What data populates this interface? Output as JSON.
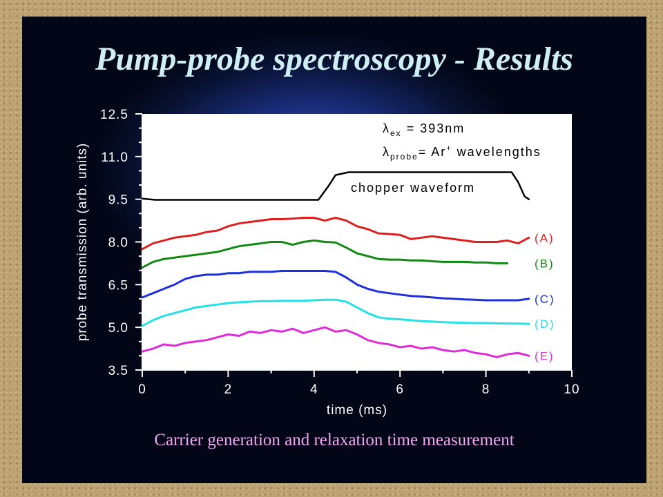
{
  "slide": {
    "title": "Pump-probe spectroscopy - Results",
    "caption": "Carrier generation and relaxation time measurement"
  },
  "chart_data": {
    "type": "line",
    "xlabel": "time (ms)",
    "ylabel": "probe transmission (arb. units)",
    "xlim": [
      0,
      10
    ],
    "ylim": [
      3.5,
      12.5
    ],
    "x_ticks": [
      "0",
      "2",
      "4",
      "6",
      "8",
      "10"
    ],
    "y_ticks": [
      "3.5",
      "5.0",
      "6.5",
      "8.0",
      "9.5",
      "11.0",
      "12.5"
    ],
    "annotations": {
      "excitation": "λex = 393nm",
      "probe": "λprobe = Ar+ wavelengths",
      "chopper": "chopper waveform"
    },
    "series": [
      {
        "name": "chopper waveform",
        "color": "#000000",
        "x": [
          0,
          0.3,
          4.1,
          4.35,
          4.5,
          4.8,
          5.5,
          6.5,
          7.5,
          8.6,
          8.75,
          8.9,
          9.0
        ],
        "y": [
          9.52,
          9.48,
          9.48,
          10.0,
          10.35,
          10.45,
          10.45,
          10.45,
          10.45,
          10.45,
          10.1,
          9.6,
          9.5
        ]
      },
      {
        "name": "(A)",
        "color": "#dd1f1f",
        "x": [
          0,
          0.25,
          0.5,
          0.75,
          1.0,
          1.25,
          1.5,
          1.75,
          2.0,
          2.25,
          2.5,
          2.75,
          3.0,
          3.25,
          3.5,
          3.75,
          4.0,
          4.25,
          4.5,
          4.75,
          5.0,
          5.25,
          5.5,
          5.75,
          6.0,
          6.25,
          6.5,
          6.75,
          7.0,
          7.25,
          7.5,
          7.75,
          8.0,
          8.25,
          8.5,
          8.75,
          9.0
        ],
        "y": [
          7.75,
          7.95,
          8.05,
          8.15,
          8.2,
          8.25,
          8.35,
          8.4,
          8.55,
          8.65,
          8.7,
          8.75,
          8.8,
          8.8,
          8.82,
          8.85,
          8.85,
          8.75,
          8.85,
          8.75,
          8.55,
          8.45,
          8.3,
          8.28,
          8.25,
          8.1,
          8.15,
          8.2,
          8.15,
          8.1,
          8.05,
          8.0,
          8.0,
          8.0,
          8.05,
          7.95,
          8.15
        ]
      },
      {
        "name": "(B)",
        "color": "#118811",
        "x": [
          0,
          0.25,
          0.5,
          0.75,
          1.0,
          1.25,
          1.5,
          1.75,
          2.0,
          2.25,
          2.5,
          2.75,
          3.0,
          3.25,
          3.5,
          3.75,
          4.0,
          4.25,
          4.5,
          4.75,
          5.0,
          5.25,
          5.5,
          5.75,
          6.0,
          6.25,
          6.5,
          6.75,
          7.0,
          7.25,
          7.5,
          7.75,
          8.0,
          8.25,
          8.5
        ],
        "y": [
          7.1,
          7.3,
          7.4,
          7.45,
          7.5,
          7.55,
          7.6,
          7.65,
          7.75,
          7.85,
          7.9,
          7.95,
          8.0,
          8.0,
          7.9,
          8.0,
          8.05,
          8.0,
          7.98,
          7.8,
          7.6,
          7.5,
          7.4,
          7.38,
          7.38,
          7.35,
          7.35,
          7.32,
          7.3,
          7.3,
          7.3,
          7.28,
          7.28,
          7.25,
          7.25
        ]
      },
      {
        "name": "(C)",
        "color": "#1c2fd8",
        "x": [
          0,
          0.25,
          0.5,
          0.75,
          1.0,
          1.25,
          1.5,
          1.75,
          2.0,
          2.25,
          2.5,
          2.75,
          3.0,
          3.25,
          3.5,
          3.75,
          4.0,
          4.25,
          4.5,
          4.75,
          5.0,
          5.25,
          5.5,
          5.75,
          6.0,
          6.25,
          6.5,
          6.75,
          7.0,
          7.25,
          7.5,
          7.75,
          8.0,
          8.25,
          8.5,
          8.75,
          9.0
        ],
        "y": [
          6.05,
          6.2,
          6.35,
          6.5,
          6.7,
          6.8,
          6.85,
          6.85,
          6.9,
          6.9,
          6.95,
          6.95,
          6.95,
          6.98,
          6.98,
          6.98,
          6.98,
          6.98,
          6.95,
          6.75,
          6.5,
          6.35,
          6.25,
          6.2,
          6.15,
          6.1,
          6.08,
          6.05,
          6.02,
          6.0,
          5.98,
          5.97,
          5.95,
          5.95,
          5.95,
          5.95,
          6.0
        ]
      },
      {
        "name": "(D)",
        "color": "#22e0e8",
        "x": [
          0,
          0.25,
          0.5,
          0.75,
          1.0,
          1.25,
          1.5,
          1.75,
          2.0,
          2.25,
          2.5,
          2.75,
          3.0,
          3.25,
          3.5,
          3.75,
          4.0,
          4.25,
          4.5,
          4.75,
          5.0,
          5.25,
          5.5,
          5.75,
          6.0,
          6.25,
          6.5,
          6.75,
          7.0,
          7.25,
          7.5,
          7.75,
          8.0,
          8.25,
          8.5,
          8.75,
          9.0
        ],
        "y": [
          5.05,
          5.25,
          5.4,
          5.5,
          5.6,
          5.7,
          5.75,
          5.8,
          5.85,
          5.88,
          5.9,
          5.92,
          5.92,
          5.93,
          5.93,
          5.93,
          5.95,
          5.97,
          5.97,
          5.9,
          5.7,
          5.5,
          5.35,
          5.3,
          5.28,
          5.25,
          5.22,
          5.2,
          5.18,
          5.17,
          5.16,
          5.15,
          5.15,
          5.14,
          5.13,
          5.13,
          5.12
        ]
      },
      {
        "name": "(E)",
        "color": "#e02ad8",
        "x": [
          0,
          0.25,
          0.5,
          0.75,
          1.0,
          1.25,
          1.5,
          1.75,
          2.0,
          2.25,
          2.5,
          2.75,
          3.0,
          3.25,
          3.5,
          3.75,
          4.0,
          4.25,
          4.5,
          4.75,
          5.0,
          5.25,
          5.5,
          5.75,
          6.0,
          6.25,
          6.5,
          6.75,
          7.0,
          7.25,
          7.5,
          7.75,
          8.0,
          8.25,
          8.5,
          8.75,
          9.0
        ],
        "y": [
          4.15,
          4.25,
          4.4,
          4.35,
          4.45,
          4.5,
          4.55,
          4.65,
          4.75,
          4.7,
          4.85,
          4.8,
          4.9,
          4.85,
          4.95,
          4.8,
          4.9,
          5.0,
          4.85,
          4.9,
          4.75,
          4.55,
          4.45,
          4.4,
          4.3,
          4.35,
          4.25,
          4.3,
          4.2,
          4.15,
          4.2,
          4.1,
          4.05,
          3.95,
          4.05,
          4.1,
          4.0
        ]
      }
    ]
  }
}
